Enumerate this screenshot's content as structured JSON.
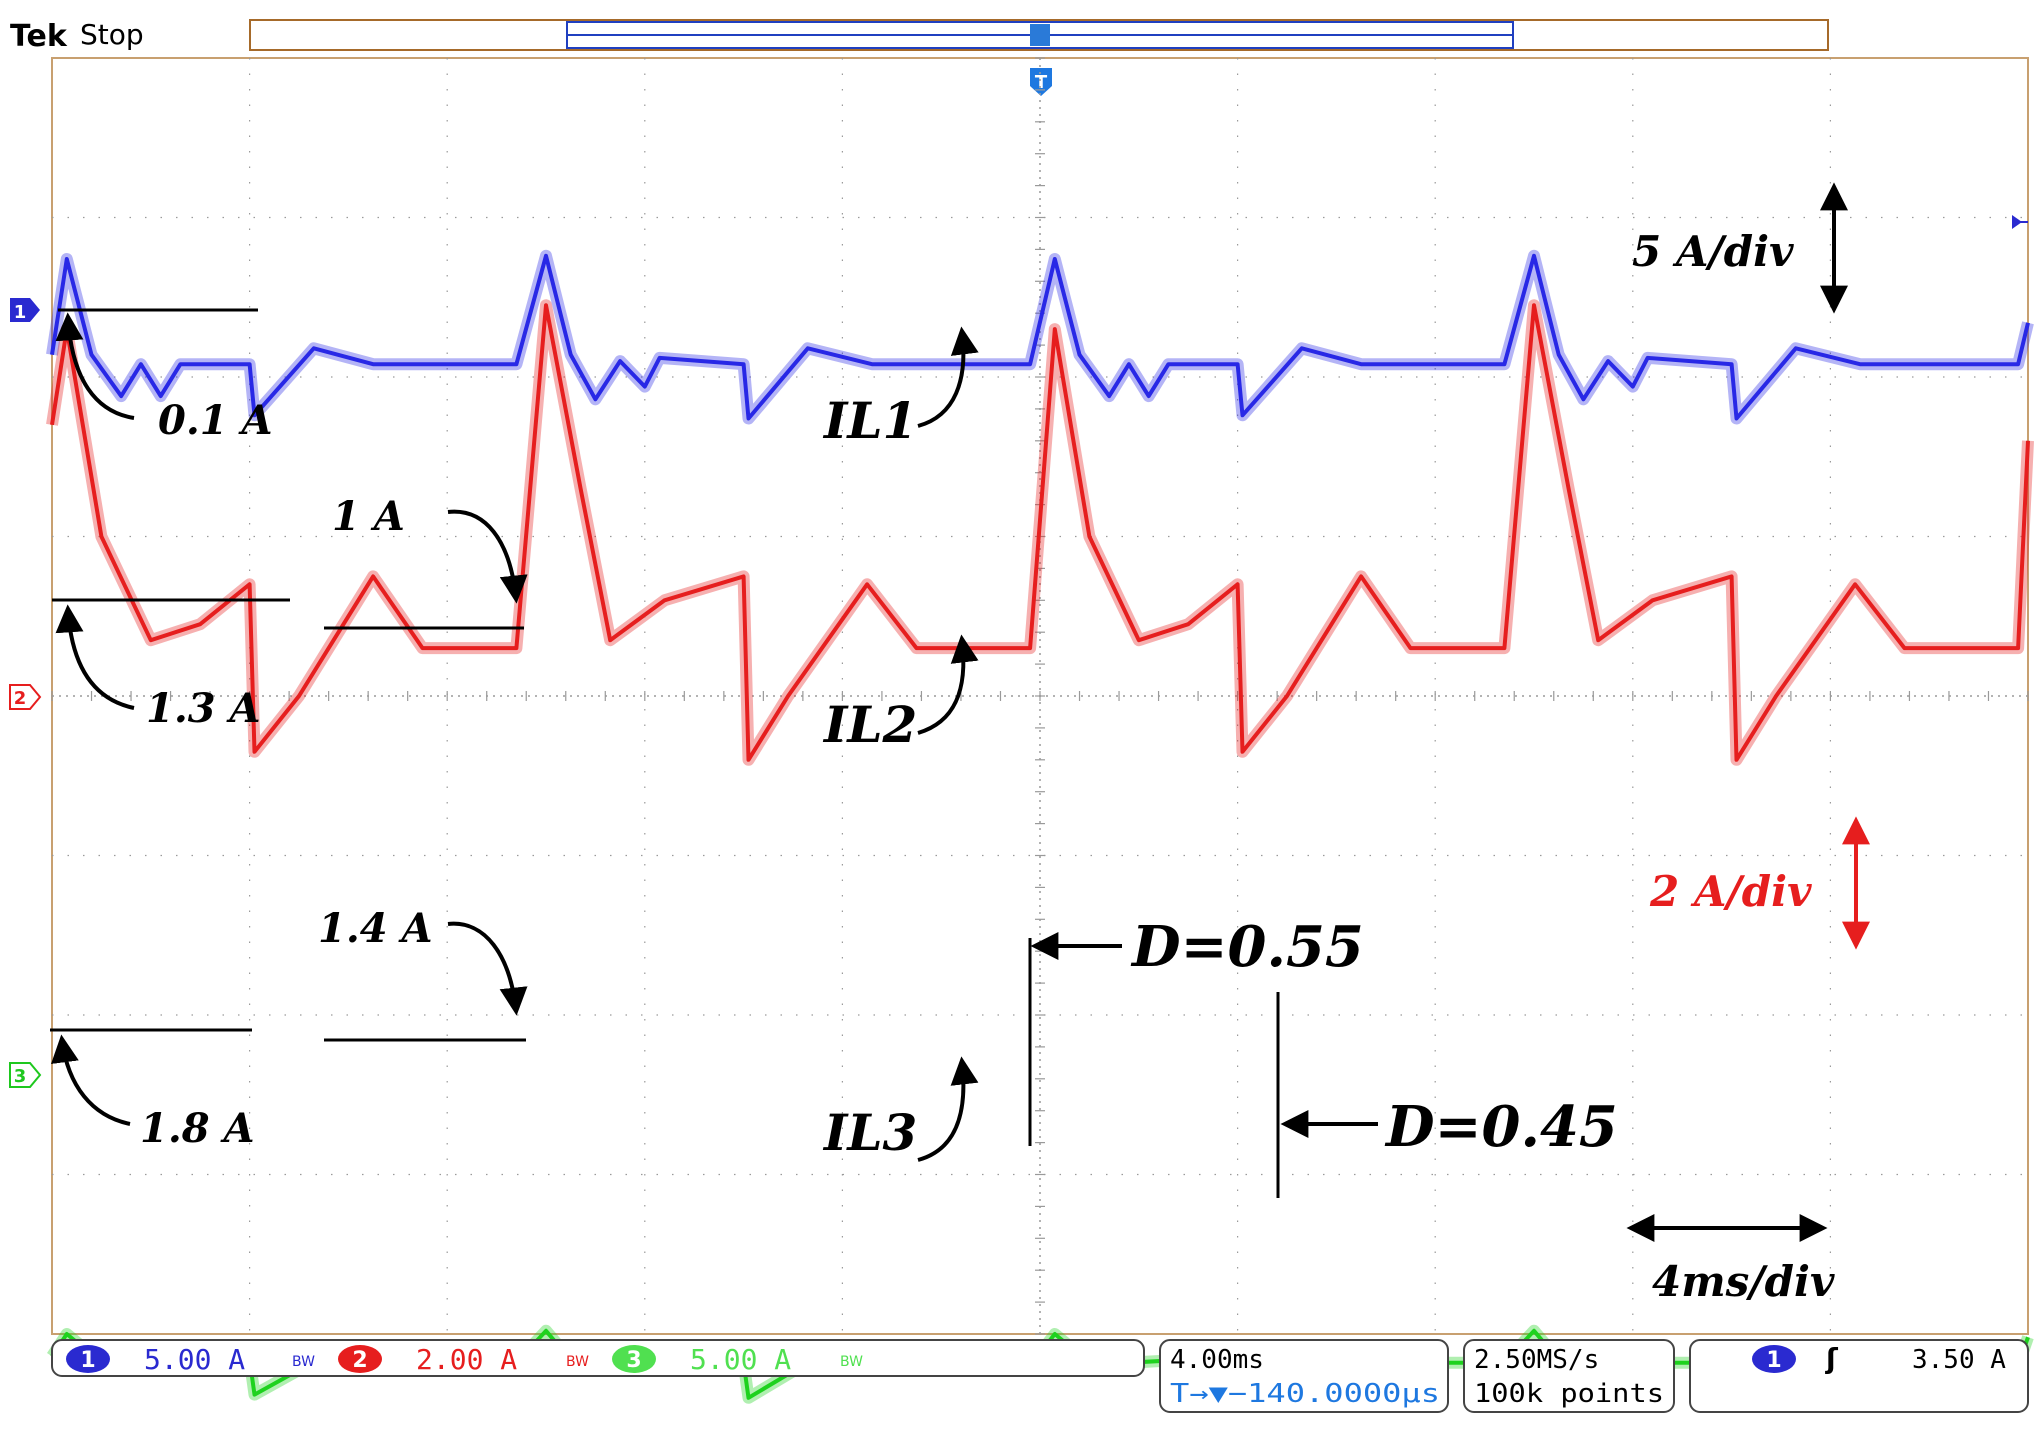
{
  "header": {
    "brand": "Tek",
    "status": "Stop"
  },
  "trigger_marker": "T",
  "colors": {
    "ch1": "#2828e6",
    "ch2": "#e61e1e",
    "ch3": "#1ed21e",
    "grid": "#9a9a9a",
    "text": "#000000"
  },
  "chart_data": {
    "type": "line",
    "x_unit": "ms",
    "x_scale": "4ms/div",
    "x_divisions": 10,
    "y_divisions": 8,
    "grid": true,
    "series": [
      {
        "name": "IL1",
        "channel": "1",
        "scale": "5 A/div",
        "color": "#2828e6",
        "x": [
          0,
          0.3,
          0.8,
          1.4,
          1.8,
          2.2,
          2.6,
          3.1,
          4.0,
          4.1,
          5.3,
          6.5,
          7.8,
          9.4,
          10.0,
          10.5,
          11.0,
          11.5,
          12.0,
          12.3,
          14.0,
          14.1,
          15.3,
          16.6,
          17.0,
          19.8,
          20.3,
          20.8,
          21.4,
          21.8,
          22.2,
          22.6,
          23.1,
          24.0,
          24.1,
          25.3,
          26.5,
          27.8,
          29.4,
          30.0,
          30.5,
          31.0,
          31.5,
          32.0,
          32.3,
          34.0,
          34.1,
          35.3,
          36.6,
          37.0,
          39.8,
          40.0
        ],
        "y": [
          0.4,
          3.4,
          0.4,
          -0.9,
          0.1,
          -0.9,
          0.1,
          0.1,
          0.1,
          -1.5,
          0.6,
          0.1,
          0.1,
          0.1,
          3.5,
          0.4,
          -1.0,
          0.2,
          -0.6,
          0.3,
          0.1,
          -1.6,
          0.6,
          0.1,
          0.1,
          0.1,
          3.4,
          0.4,
          -0.9,
          0.1,
          -0.9,
          0.1,
          0.1,
          0.1,
          -1.5,
          0.6,
          0.1,
          0.1,
          0.1,
          3.5,
          0.4,
          -1.0,
          0.2,
          -0.6,
          0.3,
          0.1,
          -1.6,
          0.6,
          0.1,
          0.1,
          0.1,
          1.4
        ]
      },
      {
        "name": "IL2",
        "channel": "2",
        "scale": "2 A/div",
        "color": "#e61e1e",
        "x": [
          0,
          0.3,
          1.0,
          2.0,
          3.0,
          4.0,
          4.1,
          5.0,
          6.5,
          7.5,
          9.4,
          10.0,
          10.7,
          11.3,
          12.4,
          14.0,
          14.1,
          14.9,
          16.5,
          17.5,
          19.8,
          20.3,
          21.0,
          22.0,
          23.0,
          24.0,
          24.1,
          25.0,
          26.5,
          27.5,
          29.4,
          30.0,
          30.7,
          31.3,
          32.4,
          34.0,
          34.1,
          34.9,
          36.5,
          37.5,
          39.8,
          40.0
        ],
        "y": [
          3.8,
          5.0,
          2.4,
          1.1,
          1.3,
          1.8,
          -0.3,
          0.4,
          1.9,
          1.0,
          1.0,
          5.3,
          3.0,
          1.1,
          1.6,
          1.9,
          -0.4,
          0.4,
          1.8,
          1.0,
          1.0,
          5.0,
          2.4,
          1.1,
          1.3,
          1.8,
          -0.3,
          0.4,
          1.9,
          1.0,
          1.0,
          5.3,
          3.0,
          1.1,
          1.6,
          1.9,
          -0.4,
          0.4,
          1.8,
          1.0,
          1.0,
          3.6
        ]
      },
      {
        "name": "IL3",
        "channel": "3",
        "scale": "5 A/div",
        "color": "#1ed21e",
        "x": [
          0,
          0.3,
          1.0,
          1.8,
          3.0,
          4.0,
          4.1,
          5.5,
          6.5,
          9.4,
          10.0,
          10.6,
          11.4,
          13.0,
          14.0,
          14.1,
          15.4,
          16.4,
          19.8,
          20.3,
          21.0,
          21.8,
          23.0,
          24.0,
          24.1,
          25.5,
          26.5,
          29.4,
          30.0,
          30.6,
          31.4,
          33.0,
          34.0,
          34.1,
          35.4,
          36.4,
          39.8,
          40.0
        ],
        "y": [
          -8.6,
          -7.9,
          -8.8,
          -8.8,
          -8.7,
          -8.7,
          -9.8,
          -8.6,
          -8.8,
          -8.8,
          -7.8,
          -8.9,
          -8.8,
          -8.8,
          -8.8,
          -9.9,
          -8.7,
          -8.9,
          -8.9,
          -7.9,
          -8.8,
          -8.8,
          -8.7,
          -8.7,
          -9.8,
          -8.6,
          -8.8,
          -8.8,
          -7.8,
          -8.9,
          -8.8,
          -8.8,
          -8.8,
          -9.9,
          -8.7,
          -8.9,
          -8.9,
          -8.0
        ]
      }
    ],
    "annotations": {
      "il1": "IL1",
      "il2": "IL2",
      "il3": "IL3",
      "a01": "0.1 A",
      "a13": "1.3 A",
      "a1": "1 A",
      "a14": "1.4 A",
      "a18": "1.8 A",
      "scale5": "5 A/div",
      "scale2": "2 A/div",
      "time": "4ms/div",
      "d055": "D=0.55",
      "d045": "D=0.45"
    }
  },
  "status_bar": {
    "ch1": {
      "num": "1",
      "scale": "5.00 A"
    },
    "ch2": {
      "num": "2",
      "scale": "2.00 A"
    },
    "ch3": {
      "num": "3",
      "scale": "5.00 A"
    },
    "bw": "BW",
    "timebase": "4.00ms",
    "trigger_pos": "T→▼−140.0000μs",
    "sample_rate": "2.50MS/s",
    "record_length": "100k points",
    "trigger_src": "1",
    "trigger_slope": "ʃ",
    "trigger_level": "3.50 A"
  }
}
